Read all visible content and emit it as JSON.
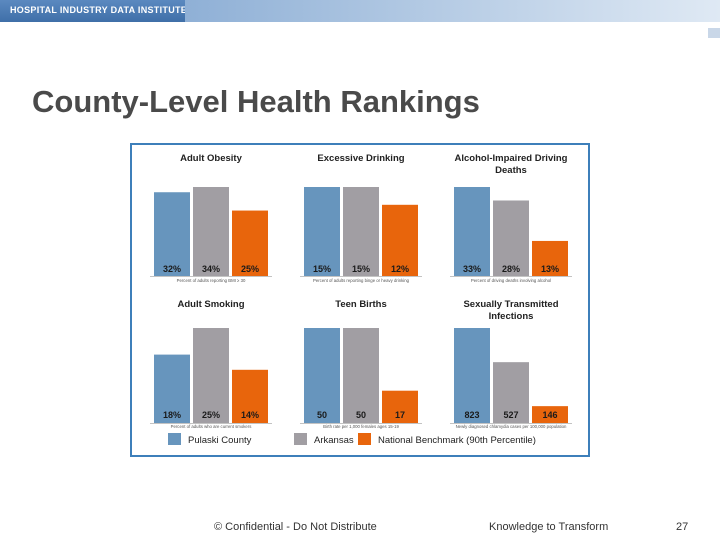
{
  "header": {
    "brand": "HOSPITAL INDUSTRY DATA INSTITUTE"
  },
  "title": "County-Level Health Rankings",
  "footer": {
    "confidential": "© Confidential - Do Not Distribute",
    "tagline": "Knowledge to Transform",
    "page_number": "27"
  },
  "colors": {
    "pulaski": "#6795bd",
    "arkansas": "#a19ea3",
    "benchmark": "#e8650c",
    "frame": "#3d7fba"
  },
  "chart_data": [
    {
      "type": "bar",
      "title": "Adult Obesity",
      "categories": [
        "Pulaski County",
        "Arkansas",
        "National Benchmark (90th Percentile)"
      ],
      "values": [
        32,
        34,
        25
      ],
      "value_labels": [
        "32%",
        "34%",
        "25%"
      ],
      "note": "Percent of adults reporting BMI ≥ 30",
      "ylim": [
        0,
        34
      ]
    },
    {
      "type": "bar",
      "title": "Excessive Drinking",
      "categories": [
        "Pulaski County",
        "Arkansas",
        "National Benchmark (90th Percentile)"
      ],
      "values": [
        15,
        15,
        12
      ],
      "value_labels": [
        "15%",
        "15%",
        "12%"
      ],
      "note": "Percent of adults reporting binge or heavy drinking",
      "ylim": [
        0,
        15
      ]
    },
    {
      "type": "bar",
      "title": "Alcohol-Impaired Driving Deaths",
      "categories": [
        "Pulaski County",
        "Arkansas",
        "National Benchmark (90th Percentile)"
      ],
      "values": [
        33,
        28,
        13
      ],
      "value_labels": [
        "33%",
        "28%",
        "13%"
      ],
      "note": "Percent of driving deaths involving alcohol",
      "ylim": [
        0,
        33
      ]
    },
    {
      "type": "bar",
      "title": "Adult Smoking",
      "categories": [
        "Pulaski County",
        "Arkansas",
        "National Benchmark (90th Percentile)"
      ],
      "values": [
        18,
        25,
        14
      ],
      "value_labels": [
        "18%",
        "25%",
        "14%"
      ],
      "note": "Percent of adults who are current smokers",
      "ylim": [
        0,
        25
      ]
    },
    {
      "type": "bar",
      "title": "Teen Births",
      "categories": [
        "Pulaski County",
        "Arkansas",
        "National Benchmark (90th Percentile)"
      ],
      "values": [
        50,
        50,
        17
      ],
      "value_labels": [
        "50",
        "50",
        "17"
      ],
      "note": "Birth rate per 1,000 females ages 15-19",
      "ylim": [
        0,
        50
      ]
    },
    {
      "type": "bar",
      "title": "Sexually Transmitted Infections",
      "categories": [
        "Pulaski County",
        "Arkansas",
        "National Benchmark (90th Percentile)"
      ],
      "values": [
        823,
        527,
        146
      ],
      "value_labels": [
        "823",
        "527",
        "146"
      ],
      "note": "Newly diagnosed chlamydia cases per 100,000 population",
      "ylim": [
        0,
        823
      ]
    }
  ],
  "legend": [
    "Pulaski County",
    "Arkansas",
    "National Benchmark (90th Percentile)"
  ]
}
